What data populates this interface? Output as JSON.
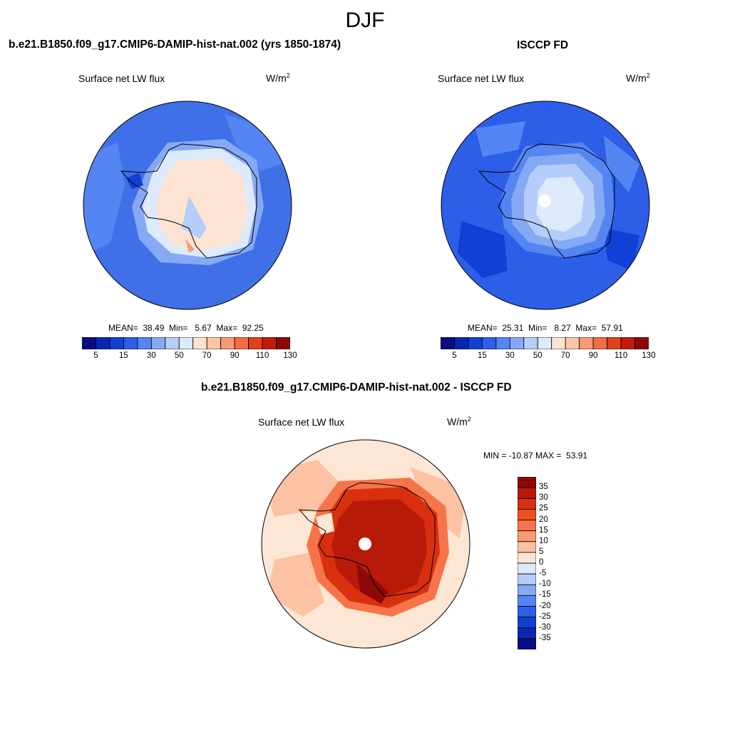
{
  "title": "DJF",
  "panels": [
    {
      "title": "b.e21.B1850.f09_g17.CMIP6-DAMIP-hist-nat.002 (yrs 1850-1874)",
      "field": "Surface net LW flux",
      "units_base": "W/m",
      "units_exp": "2",
      "stats": "MEAN=  38.49  Min=   5.67  Max=  92.25"
    },
    {
      "title": "ISCCP FD",
      "field": "Surface net LW flux",
      "units_base": "W/m",
      "units_exp": "2",
      "stats": "MEAN=  25.31  Min=   8.27  Max=  57.91"
    },
    {
      "title": "b.e21.B1850.f09_g17.CMIP6-DAMIP-hist-nat.002 - ISCCP FD",
      "field": "Surface net LW flux",
      "units_base": "W/m",
      "units_exp": "2",
      "stats": "MIN = -10.87 MAX =  53.91"
    }
  ],
  "chart_data": [
    {
      "type": "heatmap",
      "projection": "south-polar-stereographic",
      "variable": "Surface net LW flux",
      "units": "W/m2",
      "season": "DJF",
      "mean": 38.49,
      "min": 5.67,
      "max": 92.25,
      "colorbar": {
        "orientation": "horizontal",
        "levels": [
          5,
          10,
          15,
          20,
          30,
          40,
          50,
          60,
          70,
          80,
          90,
          100,
          110,
          120,
          130
        ],
        "tick_labels": [
          "5",
          "15",
          "30",
          "50",
          "70",
          "90",
          "110",
          "130"
        ],
        "colors": [
          "#0b0b82",
          "#0a27b4",
          "#1240d6",
          "#2d5ee8",
          "#5585f2",
          "#86a9f5",
          "#b5cdfa",
          "#dceafc",
          "#fde3d2",
          "#fdc4a8",
          "#f99a76",
          "#f26c45",
          "#e1401c",
          "#c01b0b",
          "#8e0808"
        ]
      }
    },
    {
      "type": "heatmap",
      "projection": "south-polar-stereographic",
      "variable": "Surface net LW flux",
      "units": "W/m2",
      "season": "DJF",
      "mean": 25.31,
      "min": 8.27,
      "max": 57.91,
      "colorbar": {
        "orientation": "horizontal",
        "levels": [
          5,
          10,
          15,
          20,
          30,
          40,
          50,
          60,
          70,
          80,
          90,
          100,
          110,
          120,
          130
        ],
        "tick_labels": [
          "5",
          "15",
          "30",
          "50",
          "70",
          "90",
          "110",
          "130"
        ],
        "colors": [
          "#0b0b82",
          "#0a27b4",
          "#1240d6",
          "#2d5ee8",
          "#5585f2",
          "#86a9f5",
          "#b5cdfa",
          "#dceafc",
          "#fde3d2",
          "#fdc4a8",
          "#f99a76",
          "#f26c45",
          "#e1401c",
          "#c01b0b",
          "#8e0808"
        ]
      }
    },
    {
      "type": "heatmap",
      "projection": "south-polar-stereographic",
      "variable": "Surface net LW flux",
      "units": "W/m2",
      "season": "DJF",
      "min": -10.87,
      "max": 53.91,
      "colorbar": {
        "orientation": "vertical",
        "levels": [
          -35,
          -30,
          -25,
          -20,
          -15,
          -10,
          -5,
          0,
          5,
          10,
          15,
          20,
          25,
          30,
          35
        ],
        "tick_labels": [
          "35",
          "30",
          "25",
          "20",
          "15",
          "10",
          "5",
          "0",
          "-5",
          "-10",
          "-15",
          "-20",
          "-25",
          "-30",
          "-35"
        ],
        "colors": [
          "#8e0808",
          "#b81a0a",
          "#d8300f",
          "#f0501e",
          "#f7744a",
          "#fa9a73",
          "#fcc2a3",
          "#fde6d4",
          "#dde9fb",
          "#b5cdfa",
          "#86a9f5",
          "#5585f2",
          "#2d5ee8",
          "#1240d6",
          "#0a27b4",
          "#0b0b82"
        ]
      }
    }
  ]
}
